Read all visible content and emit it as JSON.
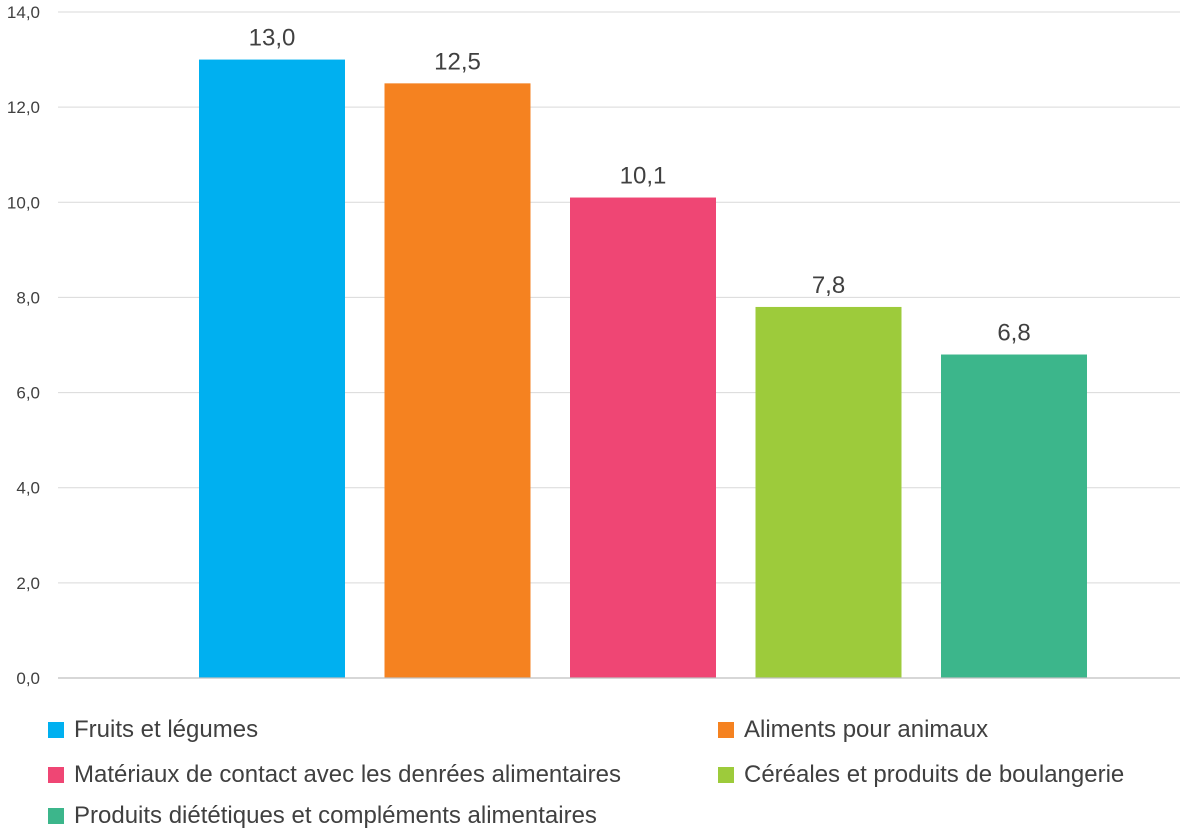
{
  "chart_data": {
    "type": "bar",
    "title": "",
    "xlabel": "",
    "ylabel": "",
    "ylim": [
      0,
      14
    ],
    "y_ticks": [
      "0,0",
      "2,0",
      "4,0",
      "6,0",
      "8,0",
      "10,0",
      "12,0",
      "14,0"
    ],
    "grid": true,
    "legend_position": "bottom",
    "categories": [
      "Fruits et légumes",
      "Aliments pour animaux",
      "Matériaux de contact avec les denrées alimentaires",
      "Céréales et produits de boulangerie",
      "Produits diététiques et compléments alimentaires"
    ],
    "values": [
      13.0,
      12.5,
      10.1,
      7.8,
      6.8
    ],
    "value_labels": [
      "13,0",
      "12,5",
      "10,1",
      "7,8",
      "6,8"
    ],
    "colors": [
      "#00b0f0",
      "#f58220",
      "#ef4674",
      "#9dcb3b",
      "#3cb68b"
    ],
    "legend": [
      "Fruits et légumes",
      "Aliments pour animaux",
      "Matériaux de contact avec les denrées alimentaires",
      "Céréales et produits de boulangerie",
      "Produits diététiques et compléments alimentaires"
    ]
  }
}
